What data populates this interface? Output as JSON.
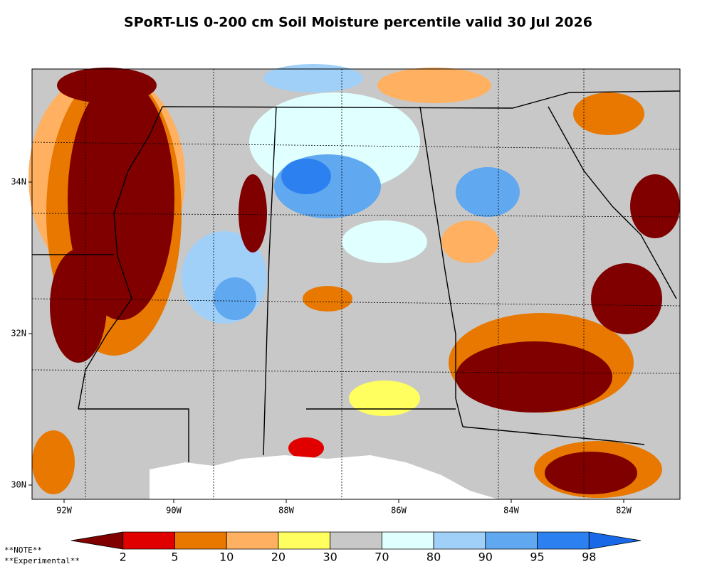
{
  "title": "SPoRT-LIS 0-200 cm Soil Moisture percentile valid 30 Jul 2026",
  "map": {
    "lat_labels": [
      "34N",
      "32N",
      "30N"
    ],
    "lon_labels": [
      "92W",
      "90W",
      "88W",
      "86W",
      "84W",
      "82W"
    ]
  },
  "colorbar": {
    "colors": [
      "#800000",
      "#e00000",
      "#e87800",
      "#ffb060",
      "#ffff60",
      "#c8c8c8",
      "#e0ffff",
      "#a0d0f8",
      "#60a8f0",
      "#2c80f0",
      "#1868e8"
    ],
    "labels": [
      "2",
      "5",
      "10",
      "20",
      "30",
      "70",
      "80",
      "90",
      "95",
      "98"
    ]
  },
  "notes": [
    "**NOTE**",
    "**Experimental**"
  ]
}
